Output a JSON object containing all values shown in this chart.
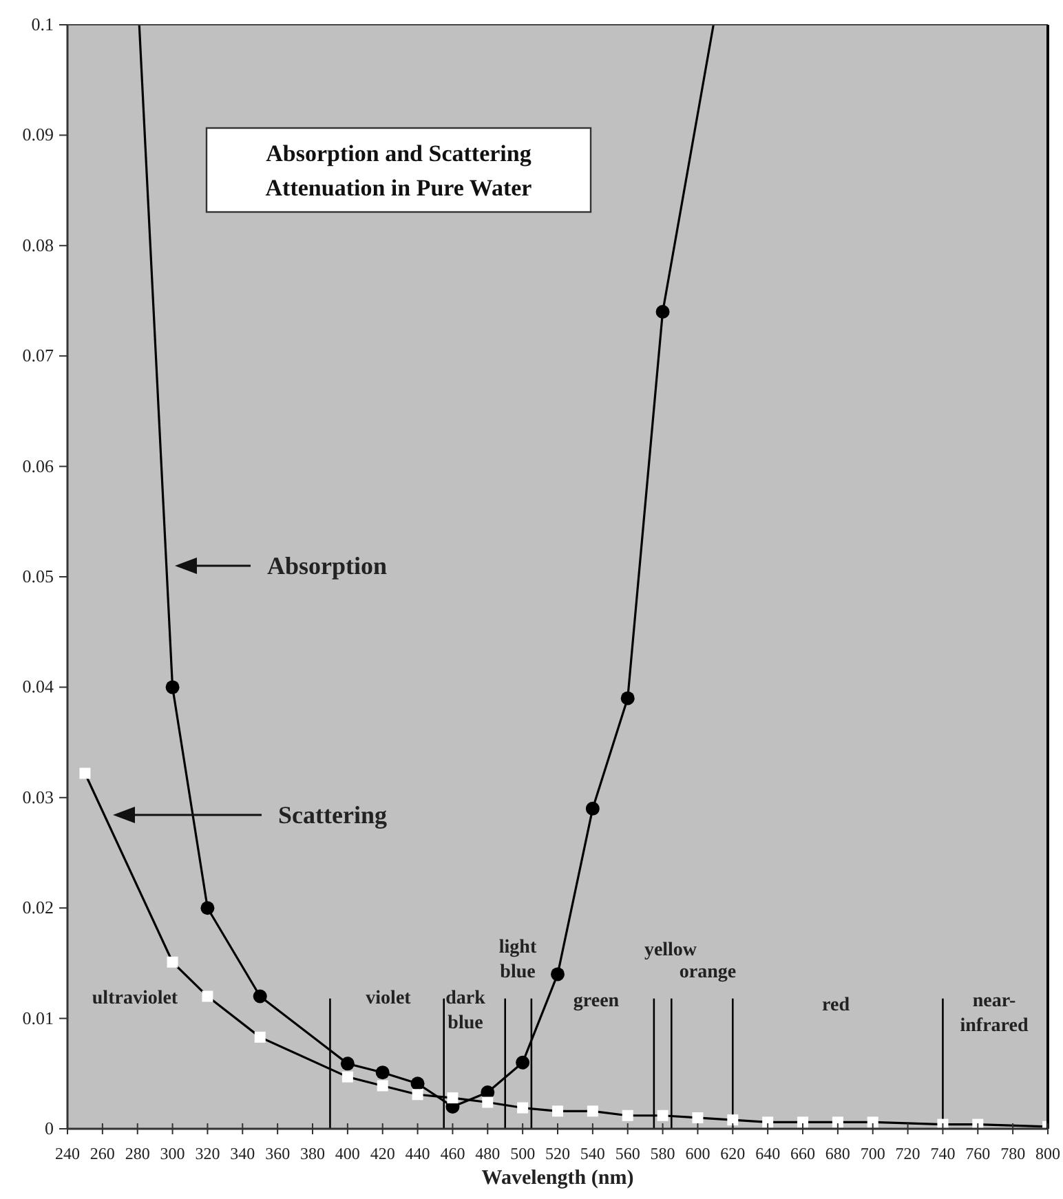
{
  "chart_data": {
    "type": "line",
    "title": "Absorption and Scattering\nAttenuation in Pure Water",
    "xlabel": "Wavelength (nm)",
    "xlim": [
      240,
      800
    ],
    "xticks": [
      240,
      260,
      280,
      300,
      320,
      340,
      360,
      380,
      400,
      420,
      440,
      460,
      480,
      500,
      520,
      540,
      560,
      580,
      600,
      620,
      640,
      660,
      680,
      700,
      720,
      740,
      760,
      780,
      800
    ],
    "ylim": [
      0,
      0.1
    ],
    "yticks": [
      0,
      0.01,
      0.02,
      0.03,
      0.04,
      0.05,
      0.06,
      0.07,
      0.08,
      0.09,
      0.1
    ],
    "grid": false,
    "series": [
      {
        "color": "#000000",
        "marker": "circle",
        "x": [
          300,
          320,
          350,
          400,
          420,
          440,
          460,
          480,
          500,
          520,
          540,
          560,
          580
        ],
        "values": [
          0.04,
          0.02,
          0.012,
          0.0059,
          0.0051,
          0.0041,
          0.002,
          0.0033,
          0.006,
          0.014,
          0.029,
          0.039,
          0.074
        ]
      },
      {
        "color": "#000000",
        "marker": "none",
        "x": [
          281,
          300
        ],
        "values": [
          0.1,
          0.04
        ]
      },
      {
        "color": "#000000",
        "marker": "none",
        "x": [
          580,
          609
        ],
        "values": [
          0.074,
          0.1
        ]
      },
      {
        "color": "#ffffff",
        "marker": "square",
        "x": [
          250,
          300,
          320,
          350,
          400,
          420,
          440,
          460,
          480,
          500,
          520,
          540,
          560,
          580,
          600,
          620,
          640,
          660,
          680,
          700,
          740,
          760,
          800
        ],
        "values": [
          0.0322,
          0.0151,
          0.012,
          0.0083,
          0.0047,
          0.0039,
          0.0031,
          0.0028,
          0.0024,
          0.0019,
          0.0016,
          0.0016,
          0.0012,
          0.0012,
          0.001,
          0.0008,
          0.0006,
          0.0006,
          0.0006,
          0.0006,
          0.0004,
          0.0004,
          0.0002
        ]
      }
    ],
    "ref_lines": [
      {
        "axis": "x",
        "value": 390,
        "color": "#000000"
      },
      {
        "axis": "x",
        "value": 455,
        "color": "#000000"
      },
      {
        "axis": "x",
        "value": 490,
        "color": "#000000"
      },
      {
        "axis": "x",
        "value": 505,
        "color": "#000000"
      },
      {
        "axis": "x",
        "value": 575,
        "color": "#000000"
      },
      {
        "axis": "x",
        "value": 585,
        "color": "#000000"
      },
      {
        "axis": "x",
        "value": 620,
        "color": "#000000"
      },
      {
        "axis": "x",
        "value": 740,
        "color": "#000000"
      }
    ],
    "annotations": [
      "Absorption",
      "Scattering",
      "ultraviolet",
      "violet",
      "dark\nblue",
      "light\nblue",
      "green",
      "yellow",
      "orange",
      "red",
      "near-\ninfrared"
    ]
  }
}
